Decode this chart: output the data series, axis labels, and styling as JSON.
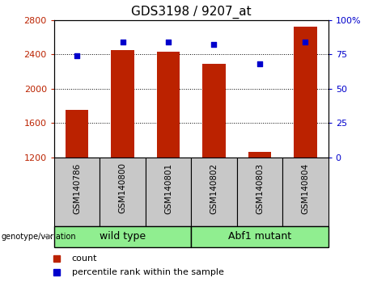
{
  "title": "GDS3198 / 9207_at",
  "samples": [
    "GSM140786",
    "GSM140800",
    "GSM140801",
    "GSM140802",
    "GSM140803",
    "GSM140804"
  ],
  "counts": [
    1750,
    2450,
    2430,
    2290,
    1260,
    2720
  ],
  "percentiles": [
    74,
    84,
    84,
    82,
    68,
    84
  ],
  "ylim_left": [
    1200,
    2800
  ],
  "ylim_right": [
    0,
    100
  ],
  "yticks_left": [
    1200,
    1600,
    2000,
    2400,
    2800
  ],
  "yticks_right": [
    0,
    25,
    50,
    75,
    100
  ],
  "bar_color": "#bb2200",
  "dot_color": "#0000cc",
  "groups": [
    {
      "label": "wild type",
      "indices": [
        0,
        1,
        2
      ]
    },
    {
      "label": "Abf1 mutant",
      "indices": [
        3,
        4,
        5
      ]
    }
  ],
  "group_label": "genotype/variation",
  "legend_count": "count",
  "legend_percentile": "percentile rank within the sample",
  "sample_bg_color": "#c8c8c8",
  "group_bg_color": "#90EE90",
  "plot_bg": "#ffffff",
  "bar_width": 0.5,
  "title_fontsize": 11,
  "tick_fontsize": 8,
  "label_fontsize": 7.5,
  "group_fontsize": 9,
  "legend_fontsize": 8
}
